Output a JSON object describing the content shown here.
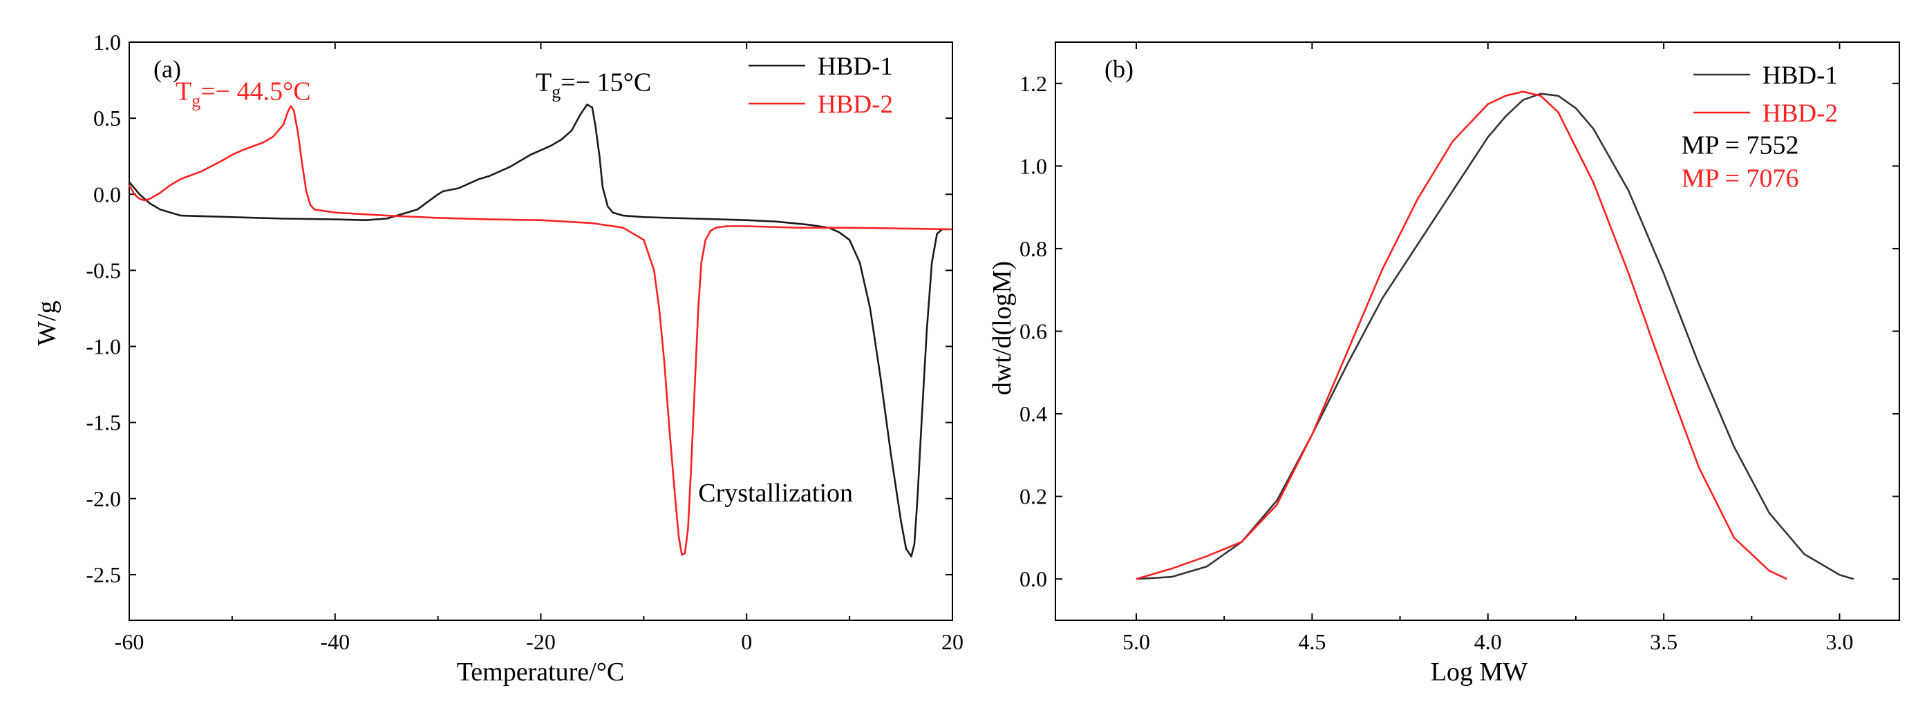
{
  "colors": {
    "series_black": "#1a1a1a",
    "series_red": "#ff2020",
    "series_gray": "#333333"
  },
  "chart_data": [
    {
      "type": "line",
      "panel_label": "(a)",
      "xlabel": "Temperature/°C",
      "ylabel": "W/g",
      "xlim": [
        -60,
        20
      ],
      "ylim": [
        -2.8,
        1.0
      ],
      "xticks": [
        -60,
        -40,
        -20,
        0,
        20
      ],
      "xtick_labels": [
        "-60",
        "-40",
        "-20",
        "0",
        "20"
      ],
      "yticks": [
        1.0,
        0.5,
        0.0,
        -0.5,
        -1.0,
        -1.5,
        -2.0,
        -2.5
      ],
      "ytick_labels": [
        "1.0",
        "0.5",
        "0.0",
        "-0.5",
        "-1.0",
        "-1.5",
        "-2.0",
        "-2.5"
      ],
      "legend": [
        "HBD-1",
        "HBD-2"
      ],
      "annotations": [
        {
          "series": "HBD-2",
          "prefix": "T",
          "sub": "g",
          "suffix": "=− 44.5°C",
          "x": -55.5,
          "y": 0.62
        },
        {
          "series": "HBD-1",
          "prefix": "T",
          "sub": "g",
          "suffix": "=− 15°C",
          "x": -20.5,
          "y": 0.68
        },
        {
          "series": "none",
          "prefix": "Crystallization",
          "sub": "",
          "suffix": "",
          "x": -4.7,
          "y": -2.02
        }
      ],
      "series": [
        {
          "name": "HBD-1",
          "color": "#1a1a1a",
          "x": [
            -60,
            -59,
            -58,
            -57,
            -55,
            -50,
            -45,
            -40,
            -37,
            -35,
            -33,
            -32,
            -31,
            -30,
            -29.5,
            -28,
            -26,
            -25,
            -23,
            -21,
            -20,
            -19,
            -18,
            -17,
            -16.2,
            -15.5,
            -15,
            -14.7,
            -14.3,
            -14,
            -13.5,
            -13,
            -12,
            -10,
            -5,
            0,
            3,
            6,
            8,
            9,
            10,
            11,
            12,
            13,
            14,
            15,
            15.5,
            16,
            16.3,
            16.6,
            17,
            17.5,
            18,
            18.5,
            19,
            20
          ],
          "y": [
            0.08,
            0.0,
            -0.06,
            -0.1,
            -0.14,
            -0.15,
            -0.16,
            -0.165,
            -0.17,
            -0.16,
            -0.12,
            -0.1,
            -0.05,
            0.0,
            0.02,
            0.04,
            0.1,
            0.12,
            0.18,
            0.26,
            0.29,
            0.32,
            0.36,
            0.42,
            0.52,
            0.59,
            0.57,
            0.45,
            0.25,
            0.05,
            -0.08,
            -0.12,
            -0.14,
            -0.15,
            -0.16,
            -0.17,
            -0.18,
            -0.2,
            -0.22,
            -0.25,
            -0.3,
            -0.45,
            -0.75,
            -1.2,
            -1.7,
            -2.15,
            -2.33,
            -2.38,
            -2.3,
            -2.0,
            -1.5,
            -0.9,
            -0.45,
            -0.26,
            -0.23,
            -0.23
          ]
        },
        {
          "name": "HBD-2",
          "color": "#ff2020",
          "x": [
            -60,
            -59.5,
            -59,
            -58.5,
            -58,
            -57,
            -56,
            -55,
            -53,
            -51,
            -50,
            -49,
            -47,
            -46,
            -45,
            -44.6,
            -44.3,
            -44,
            -43.6,
            -43.2,
            -42.8,
            -42.4,
            -42,
            -40,
            -35,
            -30,
            -25,
            -20,
            -15,
            -12,
            -10,
            -9,
            -8.5,
            -8,
            -7.5,
            -7,
            -6.6,
            -6.3,
            -6,
            -5.7,
            -5.4,
            -5,
            -4.7,
            -4.4,
            -4,
            -3.5,
            -3,
            -2,
            0,
            5,
            10,
            15,
            20
          ],
          "y": [
            0.06,
            0.0,
            -0.03,
            -0.04,
            -0.03,
            0.01,
            0.06,
            0.1,
            0.15,
            0.22,
            0.26,
            0.29,
            0.34,
            0.38,
            0.46,
            0.54,
            0.58,
            0.55,
            0.4,
            0.2,
            0.02,
            -0.07,
            -0.1,
            -0.12,
            -0.14,
            -0.155,
            -0.165,
            -0.17,
            -0.19,
            -0.22,
            -0.3,
            -0.5,
            -0.75,
            -1.1,
            -1.55,
            -1.95,
            -2.25,
            -2.37,
            -2.36,
            -2.2,
            -1.8,
            -1.2,
            -0.75,
            -0.45,
            -0.3,
            -0.24,
            -0.22,
            -0.21,
            -0.21,
            -0.22,
            -0.22,
            -0.225,
            -0.23
          ]
        }
      ]
    },
    {
      "type": "line",
      "panel_label": "(b)",
      "xlabel": "Log MW",
      "ylabel": "dwt/d(logM)",
      "xlim": [
        5.23,
        2.83
      ],
      "ylim": [
        -0.1,
        1.3
      ],
      "x_reversed": true,
      "xticks": [
        5.0,
        4.5,
        4.0,
        3.5,
        3.0
      ],
      "xtick_labels": [
        "5.0",
        "4.5",
        "4.0",
        "3.5",
        "3.0"
      ],
      "yticks": [
        0.0,
        0.2,
        0.4,
        0.6,
        0.8,
        1.0,
        1.2
      ],
      "ytick_labels": [
        "0.0",
        "0.2",
        "0.4",
        "0.6",
        "0.8",
        "1.0",
        "1.2"
      ],
      "legend": [
        "HBD-1",
        "HBD-2"
      ],
      "annotations": [
        {
          "series": "HBD-1",
          "prefix": "MP = 7552",
          "sub": "",
          "suffix": "",
          "x": 3.45,
          "y": 1.03
        },
        {
          "series": "HBD-2",
          "prefix": "MP = 7076",
          "sub": "",
          "suffix": "",
          "x": 3.45,
          "y": 0.95
        }
      ],
      "series": [
        {
          "name": "HBD-1",
          "color": "#333333",
          "x": [
            5.0,
            4.9,
            4.8,
            4.7,
            4.6,
            4.5,
            4.4,
            4.3,
            4.2,
            4.1,
            4.0,
            3.95,
            3.9,
            3.85,
            3.8,
            3.75,
            3.7,
            3.6,
            3.5,
            3.4,
            3.3,
            3.2,
            3.1,
            3.0,
            2.96
          ],
          "y": [
            0.0,
            0.005,
            0.03,
            0.09,
            0.19,
            0.35,
            0.52,
            0.68,
            0.81,
            0.94,
            1.07,
            1.12,
            1.16,
            1.175,
            1.17,
            1.14,
            1.09,
            0.94,
            0.74,
            0.52,
            0.32,
            0.16,
            0.06,
            0.01,
            0.0
          ]
        },
        {
          "name": "HBD-2",
          "color": "#ff2020",
          "x": [
            5.0,
            4.9,
            4.8,
            4.7,
            4.6,
            4.5,
            4.4,
            4.3,
            4.2,
            4.1,
            4.0,
            3.95,
            3.9,
            3.85,
            3.8,
            3.7,
            3.6,
            3.5,
            3.4,
            3.3,
            3.2,
            3.15
          ],
          "y": [
            0.0,
            0.025,
            0.055,
            0.09,
            0.18,
            0.35,
            0.55,
            0.75,
            0.92,
            1.06,
            1.15,
            1.17,
            1.18,
            1.17,
            1.13,
            0.96,
            0.74,
            0.5,
            0.27,
            0.1,
            0.02,
            0.0
          ]
        }
      ]
    }
  ]
}
